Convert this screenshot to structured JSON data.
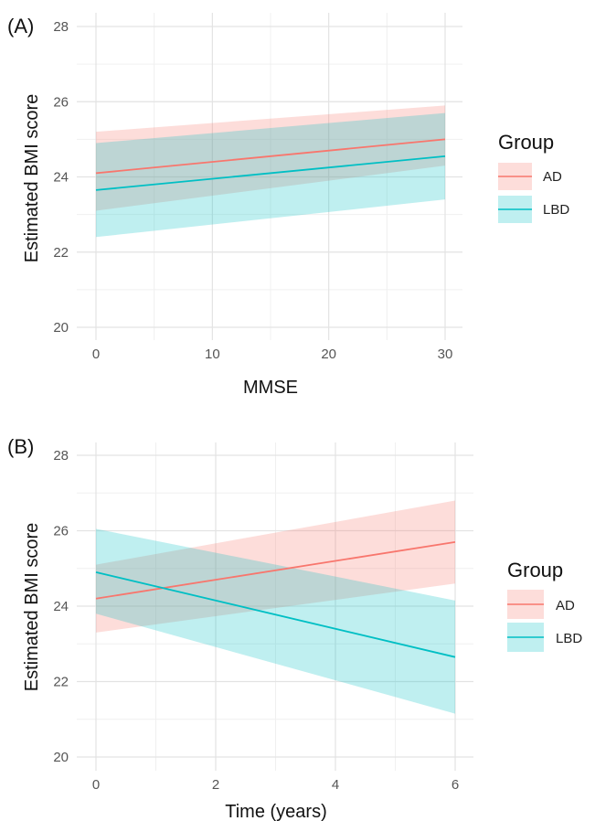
{
  "colors": {
    "AD": "#F8766D",
    "LBD": "#00BFC4"
  },
  "chart_data": [
    {
      "panel_label": "(A)",
      "type": "line",
      "xlabel": "MMSE",
      "ylabel": "Estimated BMI score",
      "xlim": [
        0,
        30
      ],
      "ylim": [
        20,
        28
      ],
      "x_ticks": [
        0,
        10,
        20,
        30
      ],
      "y_ticks": [
        20,
        22,
        24,
        26,
        28
      ],
      "grid": true,
      "legend": {
        "title": "Group",
        "position": "right",
        "entries": [
          "AD",
          "LBD"
        ]
      },
      "series": [
        {
          "name": "AD",
          "x": [
            0,
            30
          ],
          "y": [
            24.1,
            25.0
          ],
          "lower": [
            23.1,
            24.3
          ],
          "upper": [
            25.2,
            25.9
          ]
        },
        {
          "name": "LBD",
          "x": [
            0,
            30
          ],
          "y": [
            23.65,
            24.55
          ],
          "lower": [
            22.4,
            23.4
          ],
          "upper": [
            24.9,
            25.7
          ]
        }
      ]
    },
    {
      "panel_label": "(B)",
      "type": "line",
      "xlabel": "Time (years)",
      "ylabel": "Estimated BMI score",
      "xlim": [
        0,
        6
      ],
      "ylim": [
        20,
        28
      ],
      "x_ticks": [
        0,
        2,
        4,
        6
      ],
      "y_ticks": [
        20,
        22,
        24,
        26,
        28
      ],
      "grid": true,
      "legend": {
        "title": "Group",
        "position": "right",
        "entries": [
          "AD",
          "LBD"
        ]
      },
      "series": [
        {
          "name": "AD",
          "x": [
            0,
            6
          ],
          "y": [
            24.2,
            25.7
          ],
          "lower": [
            23.3,
            24.6
          ],
          "upper": [
            25.1,
            26.8
          ]
        },
        {
          "name": "LBD",
          "x": [
            0,
            6
          ],
          "y": [
            24.9,
            22.65
          ],
          "lower": [
            23.8,
            21.15
          ],
          "upper": [
            26.05,
            24.15
          ]
        }
      ]
    }
  ]
}
